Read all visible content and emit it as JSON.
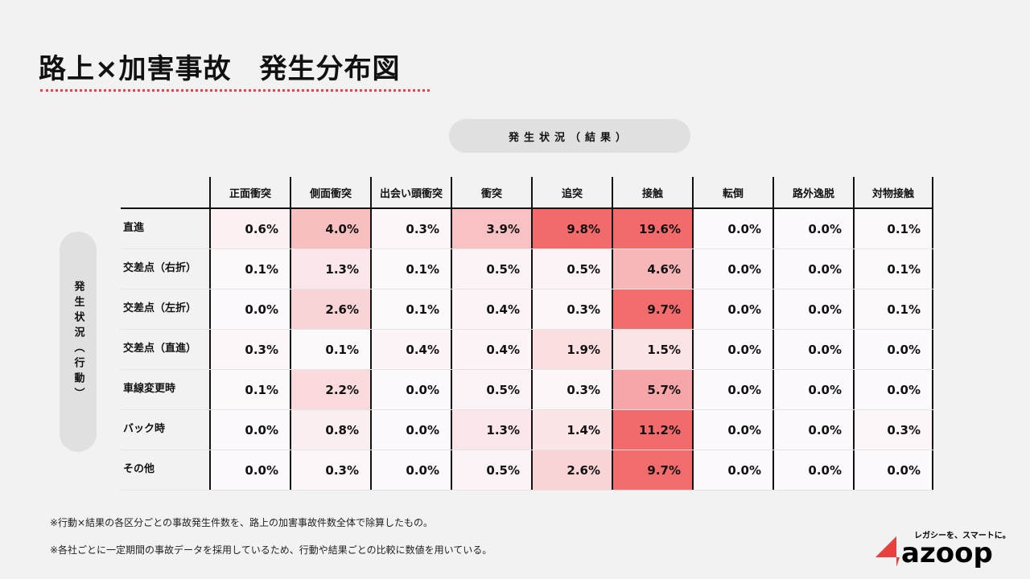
{
  "title": "路上×加害事故　発生分布図",
  "column_group_label": "発生状況（結果）",
  "row_group_label": "発生状況（行動）",
  "notes": [
    "※行動×結果の各区分ごとの事故発生件数を、路上の加害事故件数全体で除算したもの。",
    "※各社ごとに一定期間の事故データを採用しているため、行動や結果ごとの比較に数値を用いている。"
  ],
  "logo": {
    "tagline": "レガシーを、スマートに。",
    "name": "azoop",
    "color": "#e8403f"
  },
  "chart_data": {
    "type": "heatmap",
    "columns": [
      "正面衝突",
      "側面衝突",
      "出会い頭衝突",
      "衝突",
      "追突",
      "接触",
      "転倒",
      "路外逸脱",
      "対物接触"
    ],
    "rows": [
      "直進",
      "交差点（右折）",
      "交差点（左折）",
      "交差点（直進）",
      "車線変更時",
      "バック時",
      "その他"
    ],
    "unit": "%",
    "values": [
      [
        0.6,
        4.0,
        0.3,
        3.9,
        9.8,
        19.6,
        0.0,
        0.0,
        0.1
      ],
      [
        0.1,
        1.3,
        0.1,
        0.5,
        0.5,
        4.6,
        0.0,
        0.0,
        0.1
      ],
      [
        0.0,
        2.6,
        0.1,
        0.4,
        0.3,
        9.7,
        0.0,
        0.0,
        0.1
      ],
      [
        0.3,
        0.1,
        0.4,
        0.4,
        1.9,
        1.5,
        0.0,
        0.0,
        0.0
      ],
      [
        0.1,
        2.2,
        0.0,
        0.5,
        0.3,
        5.7,
        0.0,
        0.0,
        0.0
      ],
      [
        0.0,
        0.8,
        0.0,
        1.3,
        1.4,
        11.2,
        0.0,
        0.0,
        0.3
      ],
      [
        0.0,
        0.3,
        0.0,
        0.5,
        2.6,
        9.7,
        0.0,
        0.0,
        0.0
      ]
    ],
    "color_low": "#fcfafc",
    "color_high": "#f26a6c"
  }
}
